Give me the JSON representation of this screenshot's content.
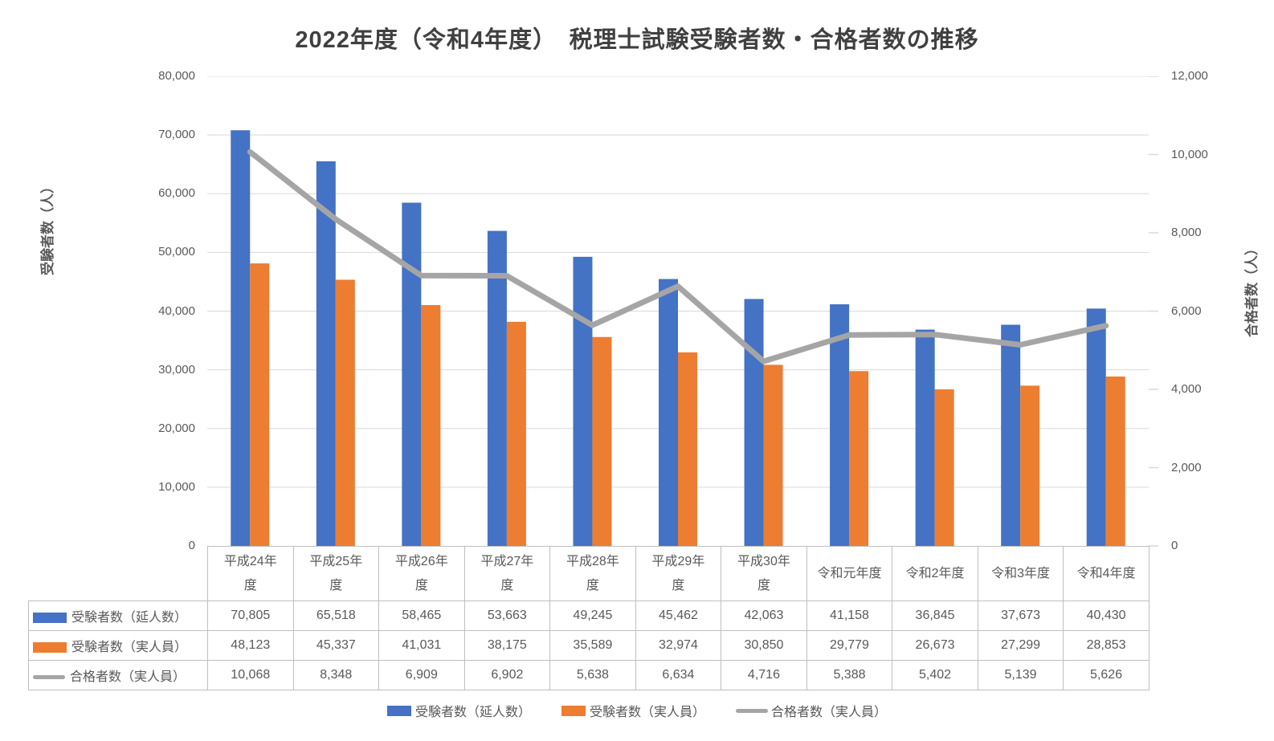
{
  "title": "2022年度（令和4年度）　税理士試験受験者数・合格者数の推移",
  "left_axis": {
    "title": "受験者数（人）",
    "ticks": [
      "0",
      "10,000",
      "20,000",
      "30,000",
      "40,000",
      "50,000",
      "60,000",
      "70,000",
      "80,000"
    ],
    "min": 0,
    "max": 80000
  },
  "right_axis": {
    "title": "合格者数（人）",
    "ticks": [
      "0",
      "2,000",
      "4,000",
      "6,000",
      "8,000",
      "10,000",
      "12,000"
    ],
    "min": 0,
    "max": 12000
  },
  "chart_data": {
    "type": "bar",
    "subtype": "bar+line combo, dual axis",
    "title": "2022年度（令和4年度）　税理士試験受験者数・合格者数の推移",
    "categories": [
      "平成24年度",
      "平成25年度",
      "平成26年度",
      "平成27年度",
      "平成28年度",
      "平成29年度",
      "平成30年度",
      "令和元年度",
      "令和2年度",
      "令和3年度",
      "令和4年度"
    ],
    "category_display": [
      "平成24年\n度",
      "平成25年\n度",
      "平成26年\n度",
      "平成27年\n度",
      "平成28年\n度",
      "平成29年\n度",
      "平成30年\n度",
      "令和元年度",
      "令和2年度",
      "令和3年度",
      "令和4年度"
    ],
    "series": [
      {
        "key": "examinees-total",
        "name": "受験者数（延人数）",
        "type": "bar",
        "axis": "left",
        "color": "#4472C4",
        "values": [
          70805,
          65518,
          58465,
          53663,
          49245,
          45462,
          42063,
          41158,
          36845,
          37673,
          40430
        ]
      },
      {
        "key": "examinees-actual",
        "name": "受験者数（実人員）",
        "type": "bar",
        "axis": "left",
        "color": "#ED7D31",
        "values": [
          48123,
          45337,
          41031,
          38175,
          35589,
          32974,
          30850,
          29779,
          26673,
          27299,
          28853
        ]
      },
      {
        "key": "passers-actual",
        "name": "合格者数（実人員）",
        "type": "line",
        "axis": "right",
        "color": "#A5A5A5",
        "values": [
          10068,
          8348,
          6909,
          6902,
          5638,
          6634,
          4716,
          5388,
          5402,
          5139,
          5626
        ]
      }
    ],
    "ylabel_left": "受験者数（人）",
    "ylabel_right": "合格者数（人）",
    "ylim_left": [
      0,
      80000
    ],
    "ylim_right": [
      0,
      12000
    ],
    "grid": true,
    "legend_position": "bottom"
  },
  "table": {
    "rows": [
      {
        "label": "受験者数（延人数）",
        "marker": "bar",
        "color": "#4472C4",
        "values": [
          "70,805",
          "65,518",
          "58,465",
          "53,663",
          "49,245",
          "45,462",
          "42,063",
          "41,158",
          "36,845",
          "37,673",
          "40,430"
        ]
      },
      {
        "label": "受験者数（実人員）",
        "marker": "bar",
        "color": "#ED7D31",
        "values": [
          "48,123",
          "45,337",
          "41,031",
          "38,175",
          "35,589",
          "32,974",
          "30,850",
          "29,779",
          "26,673",
          "27,299",
          "28,853"
        ]
      },
      {
        "label": "合格者数（実人員）",
        "marker": "line",
        "color": "#A5A5A5",
        "values": [
          "10,068",
          "8,348",
          "6,909",
          "6,902",
          "5,638",
          "6,634",
          "4,716",
          "5,388",
          "5,402",
          "5,139",
          "5,626"
        ]
      }
    ]
  },
  "legend": {
    "items": [
      {
        "label": "受験者数（延人数）",
        "marker": "bar",
        "color": "#4472C4"
      },
      {
        "label": "受験者数（実人員）",
        "marker": "bar",
        "color": "#ED7D31"
      },
      {
        "label": "合格者数（実人員）",
        "marker": "line",
        "color": "#A5A5A5"
      }
    ]
  },
  "colors": {
    "bar_blue": "#4472C4",
    "bar_orange": "#ED7D31",
    "line_gray": "#A5A5A5",
    "gridline": "#D9D9D9",
    "table_border": "#BFBFBF",
    "text": "#595959",
    "title_text": "#404040"
  }
}
